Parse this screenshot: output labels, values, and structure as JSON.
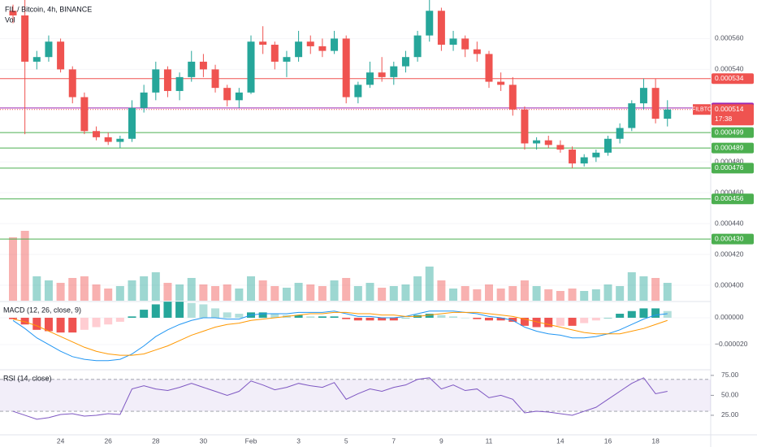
{
  "chart_data": [
    {
      "type": "candlestick",
      "title": "FIL / Bitcoin, 4h, BINANCE",
      "categories": [
        null,
        null,
        null,
        null,
        "24",
        null,
        null,
        null,
        "26",
        null,
        null,
        null,
        "28",
        null,
        null,
        null,
        "30",
        null,
        null,
        null,
        "Feb",
        null,
        null,
        null,
        "3",
        null,
        null,
        null,
        "5",
        null,
        null,
        null,
        "7",
        null,
        null,
        null,
        "9",
        null,
        null,
        null,
        "11",
        null,
        null,
        null,
        null,
        null,
        "14",
        null,
        null,
        null,
        "16",
        null,
        null,
        null,
        "18",
        null
      ],
      "open": [
        0.000578,
        0.000575,
        0.000545,
        0.000548,
        0.000558,
        0.00054,
        0.000522,
        0.0005,
        0.000496,
        0.000493,
        0.000495,
        0.000515,
        0.000525,
        0.00054,
        0.000526,
        0.000535,
        0.000545,
        0.00054,
        0.000528,
        0.00052,
        0.000525,
        0.000558,
        0.000556,
        0.000545,
        0.000548,
        0.000558,
        0.000555,
        0.000552,
        0.00056,
        0.000522,
        0.00053,
        0.000538,
        0.000535,
        0.000542,
        0.000548,
        0.000562,
        0.000578,
        0.000556,
        0.00056,
        0.000553,
        0.00055,
        0.000532,
        0.00053,
        0.000514,
        0.000492,
        0.000494,
        0.000491,
        0.000488,
        0.000479,
        0.000483,
        0.000486,
        0.000495,
        0.000502,
        0.000518,
        0.000528,
        0.000508
      ],
      "high": [
        0.000582,
        0.0006,
        0.000552,
        0.000562,
        0.00056,
        0.000542,
        0.000525,
        0.000503,
        0.000499,
        0.000497,
        0.00052,
        0.00053,
        0.000545,
        0.000542,
        0.000538,
        0.000552,
        0.00055,
        0.000543,
        0.00053,
        0.000528,
        0.000562,
        0.000568,
        0.000558,
        0.000552,
        0.000565,
        0.000562,
        0.00056,
        0.000565,
        0.000562,
        0.000532,
        0.000545,
        0.000548,
        0.000545,
        0.000552,
        0.000565,
        0.000592,
        0.00058,
        0.000565,
        0.000562,
        0.000558,
        0.000552,
        0.000538,
        0.000535,
        0.000516,
        0.000496,
        0.000497,
        0.000494,
        0.00049,
        0.000485,
        0.000488,
        0.000497,
        0.000505,
        0.00052,
        0.000534,
        0.000534,
        0.00052
      ],
      "low": [
        0.00057,
        0.000498,
        0.00054,
        0.000545,
        0.000538,
        0.000518,
        0.000498,
        0.000494,
        0.000491,
        0.000489,
        0.000493,
        0.000512,
        0.00052,
        0.000522,
        0.00052,
        0.000532,
        0.000535,
        0.000525,
        0.000516,
        0.000515,
        0.000524,
        0.00055,
        0.00054,
        0.000535,
        0.000545,
        0.00055,
        0.000548,
        0.00055,
        0.000518,
        0.000518,
        0.000528,
        0.000532,
        0.00053,
        0.000538,
        0.000545,
        0.000558,
        0.000552,
        0.000552,
        0.000548,
        0.000545,
        0.000528,
        0.000526,
        0.00051,
        0.000488,
        0.000488,
        0.000489,
        0.000486,
        0.000476,
        0.000477,
        0.00048,
        0.000484,
        0.000492,
        0.0005,
        0.000514,
        0.000505,
        0.000503
      ],
      "close": [
        0.000575,
        0.000545,
        0.000548,
        0.000558,
        0.00054,
        0.000522,
        0.0005,
        0.000496,
        0.000493,
        0.000495,
        0.000515,
        0.000525,
        0.00054,
        0.000526,
        0.000535,
        0.000545,
        0.00054,
        0.000528,
        0.00052,
        0.000525,
        0.000558,
        0.000556,
        0.000545,
        0.000548,
        0.000558,
        0.000555,
        0.000552,
        0.00056,
        0.000522,
        0.00053,
        0.000538,
        0.000535,
        0.000542,
        0.000548,
        0.000562,
        0.000578,
        0.000556,
        0.00056,
        0.000553,
        0.00055,
        0.000532,
        0.00053,
        0.000514,
        0.000492,
        0.000494,
        0.000491,
        0.000488,
        0.000479,
        0.000483,
        0.000486,
        0.000495,
        0.000502,
        0.000518,
        0.000528,
        0.000508,
        0.000514
      ],
      "up_color": "#26a69a",
      "down_color": "#ef5350",
      "ylim": [
        0.00039,
        0.000585
      ],
      "yticks": [
        {
          "value": 0.00056,
          "label": "0.000560"
        },
        {
          "value": 0.00054,
          "label": "0.000540"
        },
        {
          "value": 0.00048,
          "label": "0.000480"
        },
        {
          "value": 0.00046,
          "label": "0.000460"
        },
        {
          "value": 0.00044,
          "label": "0.000440"
        },
        {
          "value": 0.00042,
          "label": "0.000420"
        },
        {
          "value": 0.0004,
          "label": "0.000400"
        }
      ],
      "levels": [
        {
          "value": 0.000534,
          "label": "0.000534",
          "color": "#ef5350"
        },
        {
          "value": 0.000515,
          "label": "0.000515",
          "color": "#9c27b0"
        },
        {
          "value": 0.000499,
          "label": "0.000499",
          "color": "#4caf50"
        },
        {
          "value": 0.000489,
          "label": "0.000489",
          "color": "#4caf50"
        },
        {
          "value": 0.000476,
          "label": "0.000476",
          "color": "#4caf50"
        },
        {
          "value": 0.000456,
          "label": "0.000456",
          "color": "#4caf50"
        },
        {
          "value": 0.00043,
          "label": "0.000430",
          "color": "#4caf50"
        }
      ],
      "last_price": {
        "value": 0.000514,
        "label": "0.000514",
        "symbol": "FILBTC",
        "countdown": "17:38",
        "color": "#ef5350"
      }
    },
    {
      "type": "bar",
      "title": "Vol",
      "values": [
        78,
        86,
        30,
        25,
        22,
        28,
        30,
        20,
        15,
        18,
        25,
        30,
        35,
        22,
        20,
        28,
        20,
        18,
        20,
        15,
        30,
        25,
        18,
        16,
        22,
        20,
        18,
        25,
        28,
        18,
        22,
        16,
        18,
        20,
        30,
        42,
        25,
        15,
        18,
        14,
        20,
        15,
        18,
        25,
        18,
        14,
        12,
        15,
        12,
        14,
        20,
        18,
        35,
        30,
        28,
        22
      ],
      "ylim": [
        0,
        100
      ]
    },
    {
      "type": "macd",
      "title": "MACD (12, 26, close, 9)",
      "series": [
        {
          "color": "#2196f3",
          "values": [
            -2e-06,
            -8e-06,
            -1.5e-05,
            -2e-05,
            -2.5e-05,
            -2.9e-05,
            -3.1e-05,
            -3.2e-05,
            -3.2e-05,
            -3.1e-05,
            -2.7e-05,
            -2.1e-05,
            -1.4e-05,
            -9e-06,
            -5e-06,
            -2e-06,
            0,
            0,
            -1e-06,
            -1e-06,
            2e-06,
            3e-06,
            3e-06,
            3e-06,
            4e-06,
            4e-06,
            4e-06,
            5e-06,
            3e-06,
            1e-06,
            1e-06,
            0,
            0,
            1e-06,
            3e-06,
            5e-06,
            5e-06,
            5e-06,
            4e-06,
            3e-06,
            1e-06,
            0,
            -2e-06,
            -7e-06,
            -1e-05,
            -1.2e-05,
            -1.3e-05,
            -1.5e-05,
            -1.5e-05,
            -1.4e-05,
            -1.2e-05,
            -9e-06,
            -5e-06,
            -1e-06,
            2e-06,
            3e-06
          ]
        },
        {
          "color": "#ff9800",
          "values": [
            -1e-06,
            -3e-06,
            -6e-06,
            -1e-05,
            -1.4e-05,
            -1.8e-05,
            -2.2e-05,
            -2.5e-05,
            -2.7e-05,
            -2.8e-05,
            -2.8e-05,
            -2.7e-05,
            -2.4e-05,
            -2.1e-05,
            -1.7e-05,
            -1.3e-05,
            -1e-05,
            -7e-06,
            -5e-06,
            -4e-06,
            -2e-06,
            -1e-06,
            0,
            1e-06,
            2e-06,
            3e-06,
            3e-06,
            4e-06,
            4e-06,
            3e-06,
            3e-06,
            2e-06,
            2e-06,
            1e-06,
            1e-06,
            2e-06,
            3e-06,
            4e-06,
            4e-06,
            4e-06,
            3e-06,
            2e-06,
            1e-06,
            -1e-06,
            -3e-06,
            -5e-06,
            -7e-06,
            -9e-06,
            -1.1e-05,
            -1.2e-05,
            -1.2e-05,
            -1.2e-05,
            -1e-05,
            -8e-06,
            -5e-06,
            -2e-06
          ]
        }
      ],
      "histogram": [
        -1e-06,
        -5e-06,
        -9e-06,
        -1e-05,
        -1.1e-05,
        -1.1e-05,
        -9e-06,
        -7e-06,
        -5e-06,
        -3e-06,
        1e-06,
        6e-06,
        1e-05,
        1.2e-05,
        1.2e-05,
        1.1e-05,
        1e-05,
        7e-06,
        4e-06,
        3e-06,
        4e-06,
        4e-06,
        3e-06,
        2e-06,
        2e-06,
        1e-06,
        1e-06,
        1e-06,
        -1e-06,
        -2e-06,
        -2e-06,
        -2e-06,
        -2e-06,
        0,
        2e-06,
        3e-06,
        2e-06,
        1e-06,
        0,
        -1e-06,
        -2e-06,
        -2e-06,
        -3e-06,
        -6e-06,
        -7e-06,
        -7e-06,
        -6e-06,
        -6e-06,
        -4e-06,
        -2e-06,
        0,
        3e-06,
        5e-06,
        7e-06,
        7e-06,
        5e-06
      ],
      "ylim": [
        -3.88e-05,
        1.15e-05
      ],
      "yticks": [
        {
          "value": 0,
          "label": "0.000000"
        },
        {
          "value": -2e-05,
          "label": "−0.000020"
        }
      ]
    },
    {
      "type": "line",
      "title": "RSI (14, close)",
      "color": "#7e57c2",
      "values": [
        30,
        25,
        20,
        22,
        26,
        27,
        24,
        25,
        27,
        26,
        58,
        62,
        58,
        56,
        60,
        65,
        60,
        55,
        50,
        55,
        68,
        63,
        57,
        60,
        65,
        62,
        60,
        66,
        45,
        52,
        58,
        55,
        60,
        63,
        70,
        72,
        58,
        63,
        56,
        58,
        47,
        50,
        45,
        28,
        30,
        29,
        27,
        25,
        30,
        35,
        45,
        55,
        65,
        72,
        52,
        55
      ],
      "band": [
        30,
        70
      ],
      "ylim": [
        0.5,
        81
      ],
      "yticks": [
        {
          "value": 75,
          "label": "75.00"
        },
        {
          "value": 50,
          "label": "50.00"
        },
        {
          "value": 25,
          "label": "25.00"
        }
      ]
    }
  ]
}
